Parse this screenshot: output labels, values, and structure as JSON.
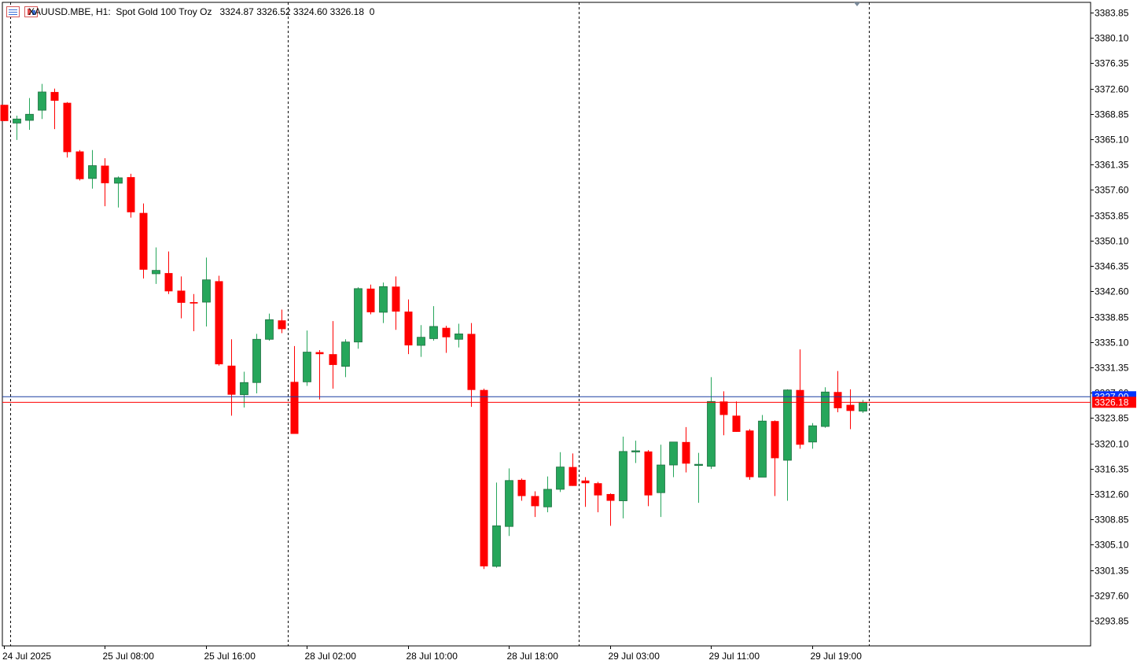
{
  "header": {
    "symbol": "XAUUSD.MBE, H1:",
    "description": "Spot Gold 100 Troy Oz",
    "open": "3324.87",
    "high": "3326.52",
    "low": "3324.60",
    "close": "3326.18",
    "volume": "0"
  },
  "price_labels": {
    "bid": "3326.18",
    "ask": "3327.00"
  },
  "colors": {
    "bull": "#26a65b",
    "bear": "#ff0000",
    "grid": "#000000",
    "bid_line": "#ff0000",
    "ask_line": "#1a3fa0",
    "ask_label_bg": "#0033ff",
    "bid_label_bg": "#ff0000"
  },
  "chart_data": {
    "type": "candlestick",
    "timeframe": "H1",
    "yticks": [
      "3383.85",
      "3380.10",
      "3376.35",
      "3372.60",
      "3368.85",
      "3365.10",
      "3361.35",
      "3357.60",
      "3353.85",
      "3350.10",
      "3346.35",
      "3342.60",
      "3338.85",
      "3335.10",
      "3331.35",
      "3327.60",
      "3323.85",
      "3320.10",
      "3316.35",
      "3312.60",
      "3308.85",
      "3305.10",
      "3301.35",
      "3297.60",
      "3293.85"
    ],
    "xticks": [
      {
        "index": 0,
        "label": "24 Jul 2025"
      },
      {
        "index": 8,
        "label": "25 Jul 08:00"
      },
      {
        "index": 16,
        "label": "25 Jul 16:00"
      },
      {
        "index": 24,
        "label": "28 Jul 02:00"
      },
      {
        "index": 32,
        "label": "28 Jul 10:00"
      },
      {
        "index": 40,
        "label": "28 Jul 18:00"
      },
      {
        "index": 48,
        "label": "29 Jul 03:00"
      },
      {
        "index": 56,
        "label": "29 Jul 11:00"
      },
      {
        "index": 64,
        "label": "29 Jul 19:00"
      }
    ],
    "day_separators_after_index": [
      0,
      22,
      45,
      68
    ],
    "ohlc": [
      [
        3370.2,
        3370.2,
        3367.8,
        3367.8
      ],
      [
        3367.5,
        3368.6,
        3365.0,
        3368.1
      ],
      [
        3367.9,
        3371.2,
        3366.5,
        3368.8
      ],
      [
        3369.4,
        3373.3,
        3368.1,
        3372.1
      ],
      [
        3372.1,
        3372.6,
        3366.6,
        3370.8
      ],
      [
        3370.5,
        3370.6,
        3362.4,
        3363.2
      ],
      [
        3363.3,
        3363.5,
        3359.0,
        3359.2
      ],
      [
        3359.3,
        3363.5,
        3357.8,
        3361.2
      ],
      [
        3361.2,
        3362.3,
        3355.2,
        3358.6
      ],
      [
        3358.6,
        3359.6,
        3355.0,
        3359.4
      ],
      [
        3359.5,
        3360.0,
        3353.5,
        3354.3
      ],
      [
        3354.2,
        3355.6,
        3344.5,
        3345.8
      ],
      [
        3345.2,
        3349.1,
        3343.7,
        3345.7
      ],
      [
        3345.3,
        3348.5,
        3342.2,
        3342.6
      ],
      [
        3342.7,
        3344.8,
        3338.6,
        3340.9
      ],
      [
        3341.0,
        3342.2,
        3336.7,
        3340.8
      ],
      [
        3341.0,
        3347.6,
        3337.4,
        3344.3
      ],
      [
        3344.1,
        3344.9,
        3331.6,
        3331.8
      ],
      [
        3331.6,
        3335.5,
        3324.2,
        3327.3
      ],
      [
        3327.3,
        3330.7,
        3325.4,
        3329.1
      ],
      [
        3329.1,
        3336.3,
        3327.5,
        3335.5
      ],
      [
        3335.5,
        3339.3,
        3335.3,
        3338.4
      ],
      [
        3338.3,
        3339.9,
        3336.4,
        3337.0
      ],
      [
        3329.2,
        3334.5,
        3321.5,
        3321.5
      ],
      [
        3329.2,
        3336.8,
        3328.6,
        3333.6
      ],
      [
        3333.6,
        3333.9,
        3326.6,
        3333.3
      ],
      [
        3333.3,
        3338.2,
        3328.2,
        3331.7
      ],
      [
        3331.5,
        3335.5,
        3329.9,
        3335.1
      ],
      [
        3335.1,
        3343.2,
        3334.1,
        3343.0
      ],
      [
        3343.0,
        3343.6,
        3339.2,
        3339.5
      ],
      [
        3339.5,
        3343.9,
        3337.9,
        3343.3
      ],
      [
        3343.3,
        3344.8,
        3336.9,
        3339.6
      ],
      [
        3339.6,
        3341.4,
        3333.3,
        3334.6
      ],
      [
        3334.6,
        3337.6,
        3332.9,
        3335.8
      ],
      [
        3335.6,
        3340.4,
        3335.3,
        3337.4
      ],
      [
        3337.2,
        3337.5,
        3333.5,
        3335.8
      ],
      [
        3335.5,
        3337.8,
        3334.3,
        3336.3
      ],
      [
        3336.3,
        3337.9,
        3325.5,
        3328.0
      ],
      [
        3328.0,
        3328.2,
        3301.5,
        3301.9
      ],
      [
        3301.9,
        3314.3,
        3301.7,
        3307.9
      ],
      [
        3307.8,
        3316.4,
        3306.4,
        3314.6
      ],
      [
        3314.7,
        3314.9,
        3311.6,
        3312.3
      ],
      [
        3312.3,
        3313.0,
        3309.2,
        3310.8
      ],
      [
        3310.7,
        3315.2,
        3309.9,
        3313.3
      ],
      [
        3313.3,
        3318.8,
        3312.9,
        3316.6
      ],
      [
        3316.6,
        3318.6,
        3313.8,
        3313.8
      ],
      [
        3314.6,
        3315.1,
        3310.7,
        3314.2
      ],
      [
        3314.2,
        3314.4,
        3309.9,
        3312.4
      ],
      [
        3312.6,
        3312.7,
        3307.9,
        3311.6
      ],
      [
        3311.6,
        3321.1,
        3309.0,
        3318.9
      ],
      [
        3318.9,
        3320.5,
        3317.2,
        3319.0
      ],
      [
        3318.9,
        3319.1,
        3310.8,
        3312.4
      ],
      [
        3312.8,
        3319.9,
        3309.2,
        3316.9
      ],
      [
        3316.9,
        3320.3,
        3315.1,
        3320.3
      ],
      [
        3320.3,
        3322.5,
        3315.8,
        3317.1
      ],
      [
        3317.0,
        3318.7,
        3311.3,
        3317.0
      ],
      [
        3316.7,
        3329.9,
        3316.3,
        3326.3
      ],
      [
        3326.3,
        3327.8,
        3321.3,
        3324.3
      ],
      [
        3324.2,
        3326.3,
        3321.8,
        3321.8
      ],
      [
        3322.0,
        3322.2,
        3314.7,
        3315.1
      ],
      [
        3315.1,
        3324.3,
        3315.1,
        3323.4
      ],
      [
        3323.4,
        3323.5,
        3312.3,
        3317.9
      ],
      [
        3317.6,
        3328.1,
        3311.6,
        3328.0
      ],
      [
        3328.0,
        3334.0,
        3319.3,
        3319.9
      ],
      [
        3320.3,
        3323.1,
        3319.3,
        3322.7
      ],
      [
        3322.6,
        3328.4,
        3322.4,
        3327.7
      ],
      [
        3327.7,
        3330.8,
        3324.7,
        3325.3
      ],
      [
        3325.8,
        3328.1,
        3322.2,
        3324.9
      ],
      [
        3324.87,
        3326.52,
        3324.6,
        3326.18
      ]
    ]
  }
}
